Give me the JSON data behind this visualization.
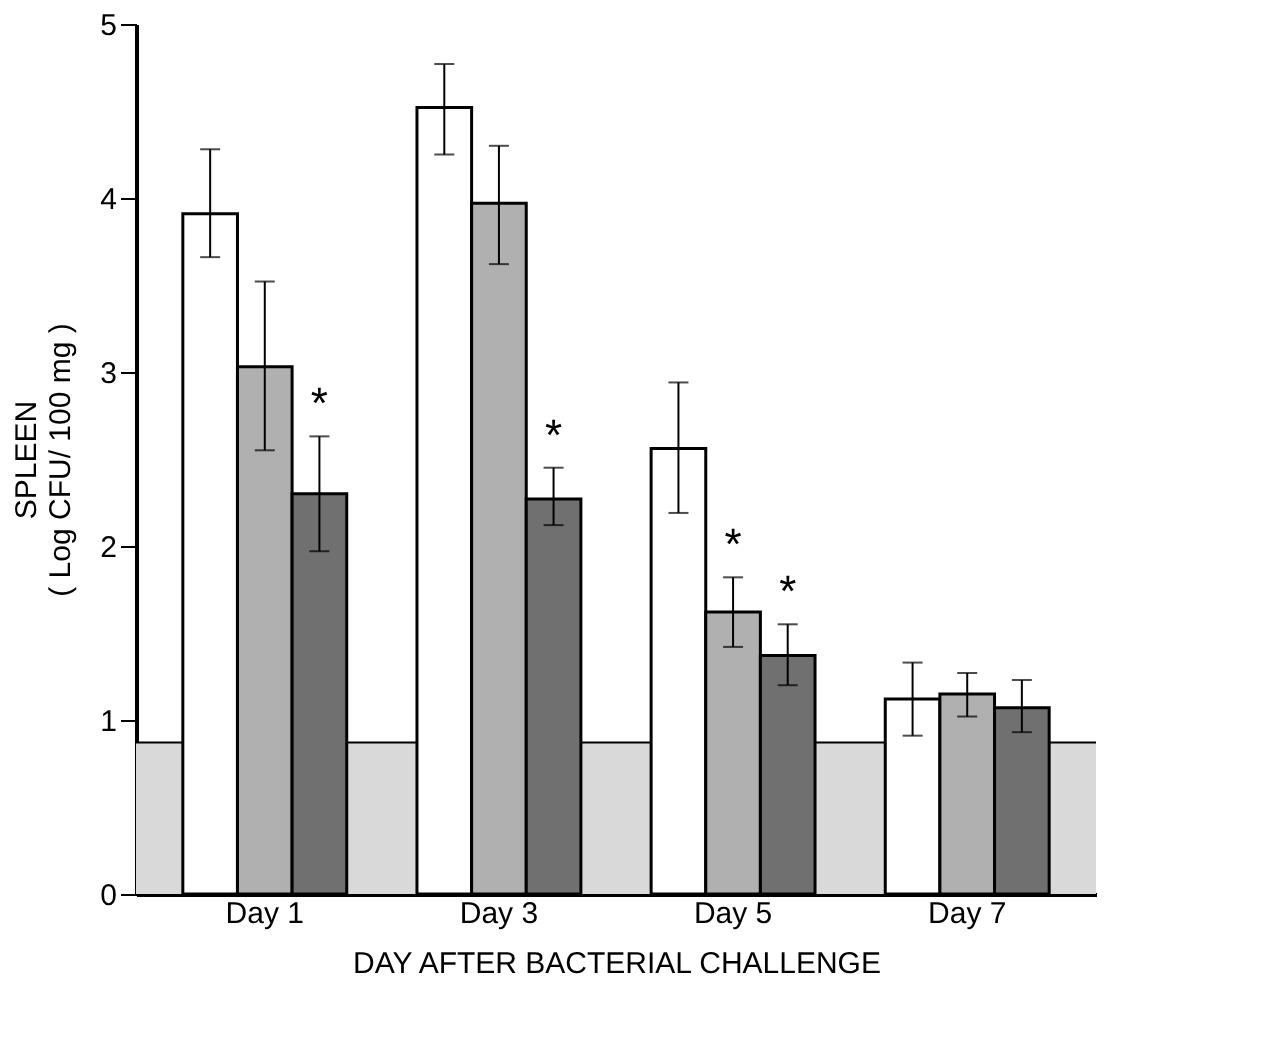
{
  "chart_data": {
    "type": "bar",
    "xlabel": "DAY AFTER BACTERIAL CHALLENGE",
    "ylabel": "SPLEEN\n( Log CFU/ 100 mg )",
    "categories": [
      "Day 1",
      "Day 3",
      "Day 5",
      "Day 7"
    ],
    "series": [
      {
        "color": "#ffffff",
        "values": [
          3.91,
          4.52,
          2.56,
          1.12
        ],
        "errors": [
          [
            3.66,
            4.28
          ],
          [
            4.25,
            4.77
          ],
          [
            2.19,
            2.94
          ],
          [
            0.91,
            1.33
          ]
        ]
      },
      {
        "color": "#b0b0b0",
        "values": [
          3.03,
          3.97,
          1.62,
          1.15
        ],
        "errors": [
          [
            2.55,
            3.52
          ],
          [
            3.62,
            4.3
          ],
          [
            1.42,
            1.82
          ],
          [
            1.02,
            1.27
          ]
        ],
        "value_labels": [
          null,
          null,
          "*",
          null
        ]
      },
      {
        "color": "#707070",
        "values": [
          2.3,
          2.27,
          1.37,
          1.07
        ],
        "errors": [
          [
            1.97,
            2.63
          ],
          [
            2.12,
            2.45
          ],
          [
            1.2,
            1.55
          ],
          [
            0.93,
            1.23
          ]
        ],
        "value_labels": [
          "*",
          "*",
          "*",
          null
        ]
      }
    ],
    "ref_lines": [
      {
        "axis": "y",
        "value": 0.87,
        "color": "#000000"
      }
    ],
    "bands": [
      {
        "axis": "y",
        "from": 0,
        "to": 0.87,
        "color": "#d9d9d9"
      }
    ],
    "ylim": [
      0,
      5
    ],
    "yticks": [
      0,
      1,
      2,
      3,
      4,
      5
    ],
    "grid": false,
    "legend": false
  }
}
